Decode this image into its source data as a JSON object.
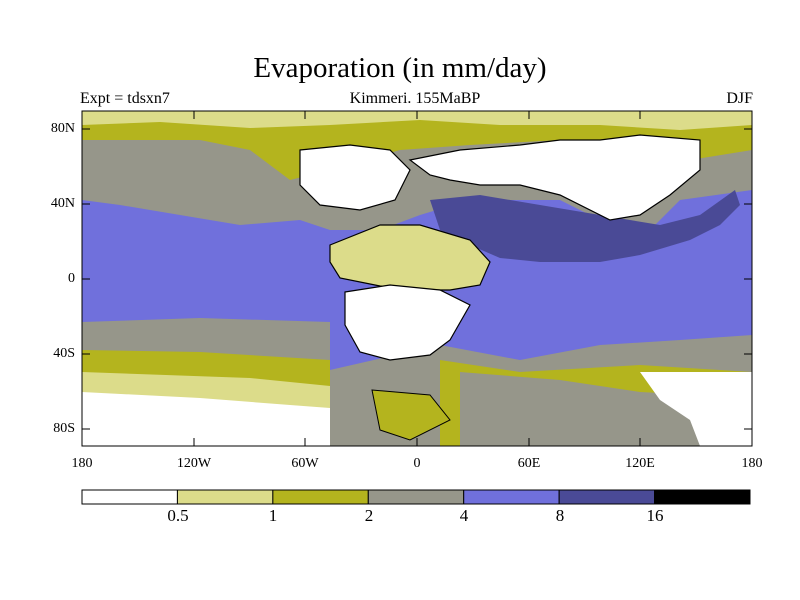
{
  "title": "Evaporation (in mm/day)",
  "experiment_label": "Expt = tdsxn7",
  "subtitle": "Kimmeri. 155MaBP",
  "season": "DJF",
  "map": {
    "lat_ticks": [
      "80N",
      "40N",
      "0",
      "40S",
      "80S"
    ],
    "lon_ticks": [
      "180",
      "120W",
      "60W",
      "0",
      "60E",
      "120E",
      "180"
    ]
  },
  "colorbar": {
    "labels": [
      "0.5",
      "1",
      "2",
      "4",
      "8",
      "16"
    ],
    "colors": [
      "#ffffff",
      "#dcdc8a",
      "#b4b41e",
      "#96968a",
      "#7070dc",
      "#4a4a96",
      "#000000"
    ]
  }
}
